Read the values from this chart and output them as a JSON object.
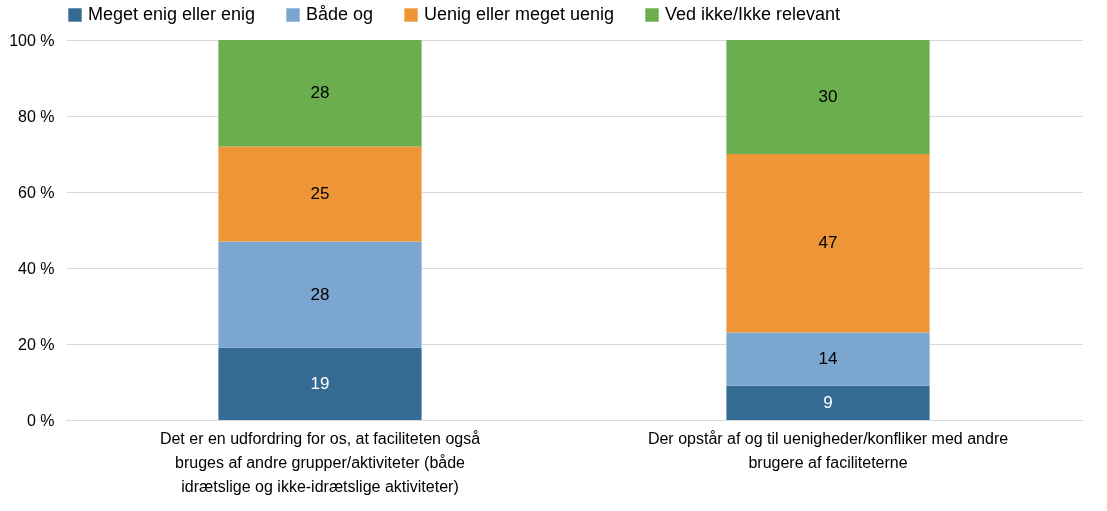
{
  "chart_data": {
    "type": "bar",
    "stacked": true,
    "categories": [
      "Det er en udfordring for os, at faciliteten også bruges af andre grupper/aktiviteter (både idrætslige og ikke-idrætslige aktiviteter)",
      "Der opstår af og til uenigheder/konfliker med andre brugere af faciliteterne"
    ],
    "series": [
      {
        "name": "Meget enig eller enig",
        "color": "#336b92",
        "values": [
          19,
          9
        ]
      },
      {
        "name": "Både og",
        "color": "#7ba6d0",
        "values": [
          28,
          14
        ]
      },
      {
        "name": "Uenig eller meget uenig",
        "color": "#ee9637",
        "values": [
          25,
          47
        ]
      },
      {
        "name": "Ved ikke/Ikke relevant",
        "color": "#6aae4d",
        "values": [
          28,
          30
        ]
      }
    ],
    "ylim": [
      0,
      100
    ],
    "yticks": [
      {
        "value": 0,
        "label": "0 %"
      },
      {
        "value": 20,
        "label": "20 %"
      },
      {
        "value": 40,
        "label": "40 %"
      },
      {
        "value": 60,
        "label": "60 %"
      },
      {
        "value": 80,
        "label": "80 %"
      },
      {
        "value": 100,
        "label": "100 %"
      }
    ],
    "grid": "y",
    "legend": "top",
    "data_labels": true
  }
}
